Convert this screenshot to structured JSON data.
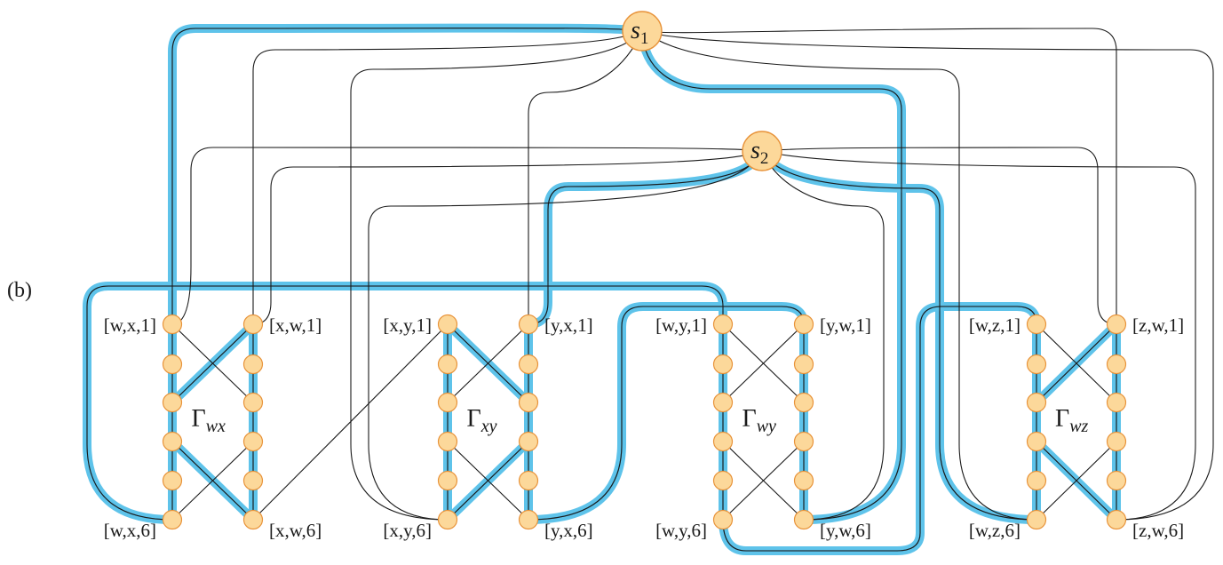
{
  "panel_label": "(b)",
  "colors": {
    "background": "#ffffff",
    "line": "#1a1a1a",
    "highlight": "#5ec3ea",
    "node_fill": "#fcd89a",
    "node_stroke": "#e8933a"
  },
  "sources": [
    {
      "id": "s1",
      "base": "s",
      "sub": "1"
    },
    {
      "id": "s2",
      "base": "s",
      "sub": "2"
    }
  ],
  "gadgets": [
    {
      "id": "wx",
      "gamma_sub": "wx",
      "labels": {
        "top_left": "[w,x,1]",
        "top_right": "[x,w,1]",
        "bottom_left": "[w,x,6]",
        "bottom_right": "[x,w,6]"
      }
    },
    {
      "id": "xy",
      "gamma_sub": "xy",
      "labels": {
        "top_left": "[x,y,1]",
        "top_right": "[y,x,1]",
        "bottom_left": "[x,y,6]",
        "bottom_right": "[y,x,6]"
      }
    },
    {
      "id": "wy",
      "gamma_sub": "wy",
      "labels": {
        "top_left": "[w,y,1]",
        "top_right": "[y,w,1]",
        "bottom_left": "[w,y,6]",
        "bottom_right": "[y,w,6]"
      }
    },
    {
      "id": "wz",
      "gamma_sub": "wz",
      "labels": {
        "top_left": "[w,z,1]",
        "top_right": "[z,w,1]",
        "bottom_left": "[w,z,6]",
        "bottom_right": "[z,w,6]"
      }
    }
  ]
}
